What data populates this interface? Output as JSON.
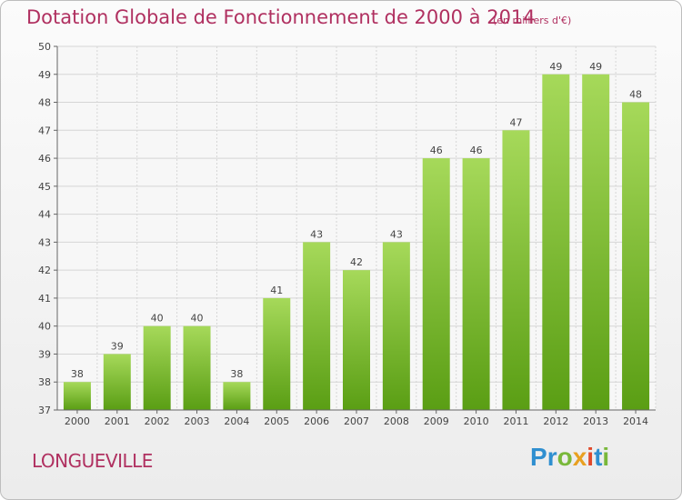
{
  "header": {
    "title": "Dotation Globale de Fonctionnement de 2000 à 2014",
    "subtitle": "(en milliers d'€)"
  },
  "footer": {
    "town": "LONGUEVILLE",
    "logo_letters": [
      "P",
      "r",
      "o",
      "x",
      "i",
      "t",
      "i"
    ]
  },
  "colors": {
    "title": "#b03060",
    "bar_light": "#9ed44e",
    "bar_dark": "#5a9e14",
    "grid": "#d6d6d6",
    "axis": "#444444"
  },
  "chart_data": {
    "type": "bar",
    "categories": [
      "2000",
      "2001",
      "2002",
      "2003",
      "2004",
      "2005",
      "2006",
      "2007",
      "2008",
      "2009",
      "2010",
      "2011",
      "2012",
      "2013",
      "2014"
    ],
    "values": [
      38,
      39,
      40,
      40,
      38,
      41,
      43,
      42,
      43,
      46,
      46,
      47,
      49,
      49,
      48
    ],
    "title": "Dotation Globale de Fonctionnement de 2000 à 2014",
    "subtitle": "(en milliers d'€)",
    "xlabel": "",
    "ylabel": "",
    "ylim": [
      37,
      50
    ],
    "yticks": [
      37,
      38,
      39,
      40,
      41,
      42,
      43,
      44,
      45,
      46,
      47,
      48,
      49,
      50
    ],
    "grid": true,
    "legend": "none"
  }
}
